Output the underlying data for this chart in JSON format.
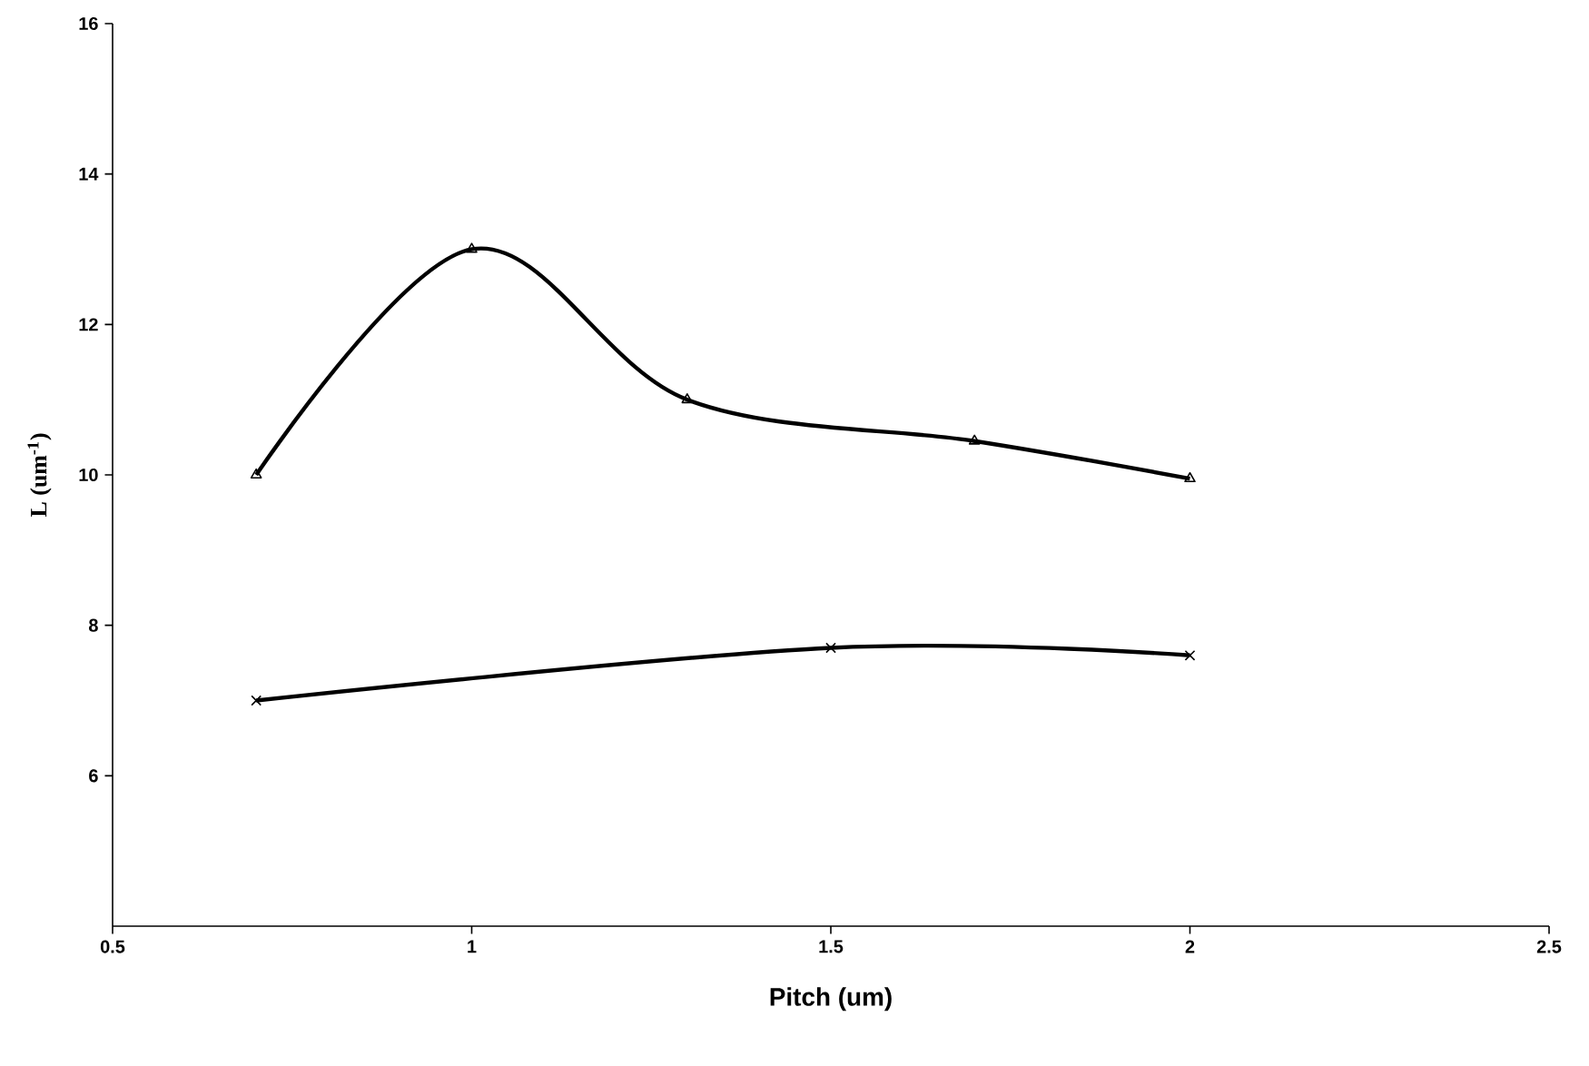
{
  "chart_data": {
    "type": "line",
    "xlabel": "Pitch (um)",
    "ylabel": "L (um$^{-1}$)",
    "xlim": [
      0.5,
      2.5
    ],
    "xticks": [
      0.5,
      1,
      1.5,
      2,
      2.5
    ],
    "ylim": [
      4,
      16
    ],
    "yticks": [
      6,
      8,
      10,
      12,
      14,
      16
    ],
    "grid": false,
    "line_style": "solid",
    "series": [
      {
        "color": "#000000",
        "marker": "triangle",
        "x": [
          0.7,
          1,
          1.3,
          1.7,
          2
        ],
        "values": [
          10,
          13,
          11,
          10.45,
          9.95
        ]
      },
      {
        "color": "#000000",
        "marker": "cross",
        "x": [
          0.7,
          1.5,
          2
        ],
        "values": [
          7,
          7.7,
          7.6
        ]
      }
    ]
  }
}
